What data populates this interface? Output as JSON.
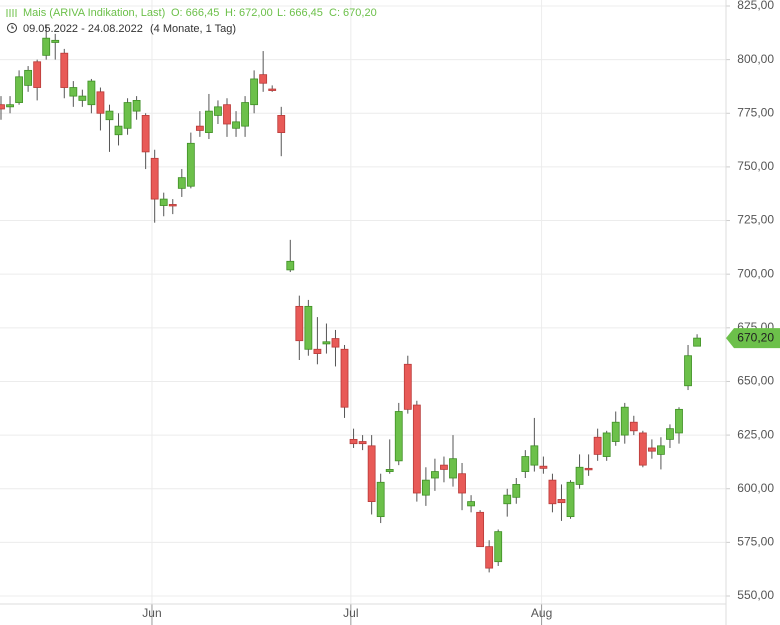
{
  "chart_data": {
    "type": "candlestick",
    "header": {
      "name": "Mais (ARIVA Indikation, Last)",
      "open": "O: 666,45",
      "high": "H: 672,00",
      "low": "L: 666,45",
      "close": "C: 670,20",
      "range": "09.05.2022 - 24.08.2022",
      "span": "(4 Monate, 1 Tag)"
    },
    "up_color": "#6cc04a",
    "down_color": "#e85a57",
    "ylim": [
      548,
      830
    ],
    "yticks": [
      {
        "value": 550,
        "label": "550,00"
      },
      {
        "value": 575,
        "label": "575,00"
      },
      {
        "value": 600,
        "label": "600,00"
      },
      {
        "value": 625,
        "label": "625,00"
      },
      {
        "value": 650,
        "label": "650,00"
      },
      {
        "value": 675,
        "label": "675,00"
      },
      {
        "value": 700,
        "label": "700,00"
      },
      {
        "value": 725,
        "label": "725,00"
      },
      {
        "value": 750,
        "label": "750,00"
      },
      {
        "value": 775,
        "label": "775,00"
      },
      {
        "value": 800,
        "label": "800,00"
      },
      {
        "value": 825,
        "label": "825,00"
      }
    ],
    "xlim": [
      -0.1,
      80.2
    ],
    "xticks": [
      {
        "value": 16.7,
        "label": "Jun"
      },
      {
        "value": 38.7,
        "label": "Jul"
      },
      {
        "value": 59.8,
        "label": "Aug"
      }
    ],
    "grid": true,
    "last_price": {
      "value": 670.2,
      "label": "670,20"
    },
    "open": [
      779,
      778,
      780,
      788,
      799,
      802,
      808,
      803,
      783,
      781,
      779,
      785,
      772,
      765,
      768,
      776,
      774,
      754,
      732,
      732.5,
      740,
      741,
      769,
      766,
      774,
      779,
      768,
      769,
      779,
      793,
      786.3,
      774,
      702,
      685,
      665,
      665,
      667.5,
      670,
      665,
      623,
      622,
      620,
      587,
      608,
      613,
      658,
      639,
      597,
      605,
      611,
      605,
      607,
      592,
      589,
      573,
      566,
      593,
      596,
      608,
      611,
      610.5,
      604,
      595,
      587,
      602,
      609.5,
      624,
      615,
      622,
      625,
      631,
      626,
      619,
      616,
      623,
      626,
      648,
      666.45
    ],
    "high": [
      783,
      783,
      795,
      797,
      800,
      816,
      812,
      805,
      790,
      786,
      791,
      787,
      779,
      775,
      782,
      783,
      775,
      758,
      738,
      735,
      749,
      766,
      776,
      784,
      781,
      782,
      776,
      783,
      795,
      804,
      788,
      778,
      716,
      690,
      688,
      680,
      677,
      674,
      667,
      628,
      625,
      625,
      607,
      623,
      640,
      662,
      641,
      610,
      614,
      615,
      625,
      612,
      597,
      590,
      576,
      581,
      600,
      605,
      618,
      633,
      615,
      607,
      602,
      604,
      616,
      616,
      628,
      627,
      636,
      640,
      634,
      627,
      623,
      624,
      630,
      638,
      667,
      672
    ],
    "low": [
      772,
      775,
      779,
      785,
      781,
      800,
      800,
      782,
      778,
      778,
      775,
      767,
      757,
      760,
      765,
      772,
      749,
      724,
      727,
      728,
      736,
      740,
      764,
      763,
      770,
      764,
      764,
      764,
      775,
      785,
      785,
      755,
      701,
      660,
      662,
      658,
      663,
      657,
      633,
      619,
      618,
      588,
      584,
      607,
      611,
      635,
      594,
      592,
      599,
      603,
      601,
      590,
      589,
      573,
      561,
      564,
      587,
      593,
      605,
      608,
      607,
      589,
      585,
      586,
      600,
      606,
      613,
      613,
      620,
      621,
      625,
      610,
      614,
      609,
      619,
      621,
      646,
      666.45
    ],
    "close": [
      777,
      779,
      792,
      795,
      787,
      810,
      809,
      787,
      787,
      783,
      790,
      775,
      776,
      769,
      780,
      781,
      757,
      735,
      735,
      732,
      745,
      761,
      767,
      776,
      778,
      770,
      771,
      780,
      791,
      789,
      786,
      766,
      706,
      669,
      685,
      663,
      668.5,
      666,
      638,
      621,
      621,
      594,
      603,
      609,
      636,
      637,
      598,
      604,
      608,
      609,
      614,
      598,
      594,
      573,
      563,
      580,
      597,
      602,
      615,
      620,
      609.5,
      593,
      593.5,
      603,
      610,
      608.8,
      616,
      626,
      631,
      638,
      627,
      611,
      617.5,
      620,
      628,
      637,
      662,
      670.2
    ]
  }
}
